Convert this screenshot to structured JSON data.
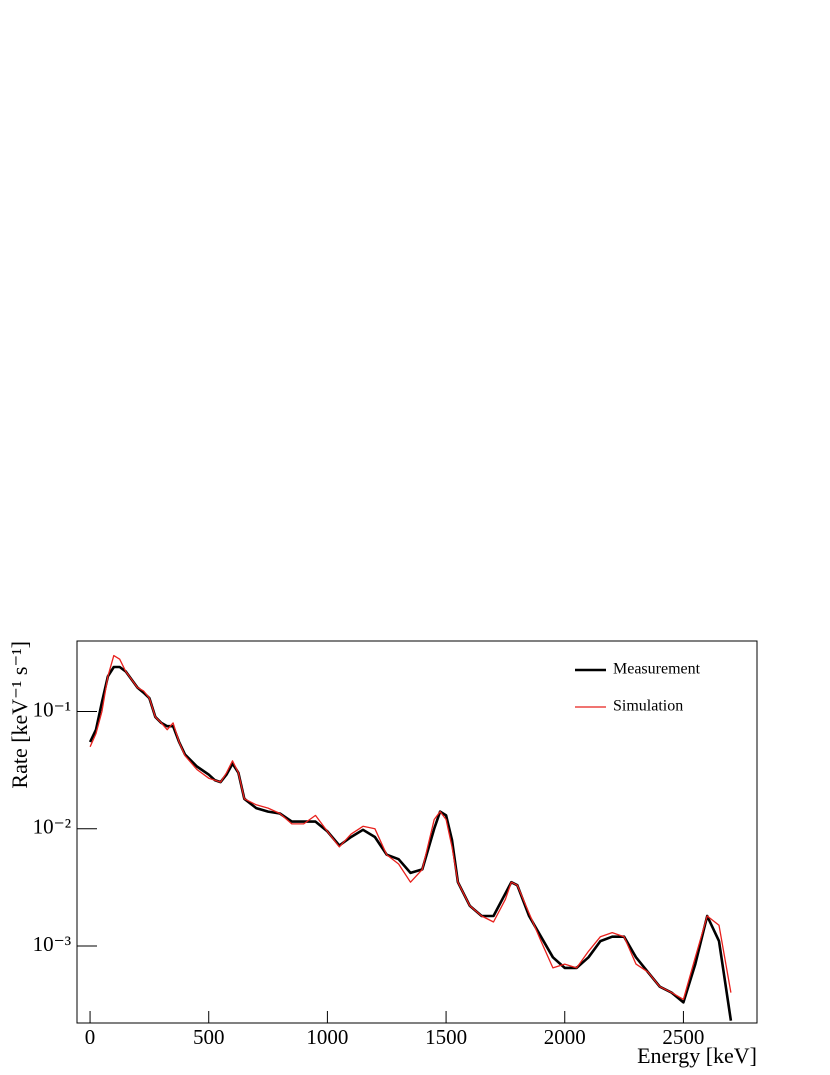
{
  "chart_data": {
    "type": "line",
    "x_label": "Energy [keV]",
    "y_label": "Rate [keV⁻¹ s⁻¹]",
    "log_y": true,
    "legend": "top-right",
    "xlim": [
      -55,
      2810
    ],
    "ylim": [
      0.00022,
      0.4
    ],
    "xticks": [
      0,
      500,
      1000,
      1500,
      2000,
      2500
    ],
    "yticks": [
      {
        "value": 0.001,
        "label": "10⁻³"
      },
      {
        "value": 0.01,
        "label": "10⁻²"
      },
      {
        "value": 0.1,
        "label": "10⁻¹"
      }
    ],
    "x": [
      0,
      25,
      50,
      75,
      100,
      125,
      150,
      200,
      225,
      250,
      275,
      300,
      325,
      350,
      375,
      400,
      450,
      500,
      525,
      550,
      575,
      600,
      625,
      650,
      700,
      750,
      800,
      850,
      900,
      950,
      1000,
      1050,
      1100,
      1150,
      1200,
      1250,
      1300,
      1350,
      1400,
      1450,
      1475,
      1500,
      1525,
      1550,
      1600,
      1650,
      1700,
      1750,
      1775,
      1800,
      1850,
      1900,
      1950,
      2000,
      2050,
      2100,
      2150,
      2200,
      2250,
      2300,
      2350,
      2400,
      2450,
      2500,
      2550,
      2600,
      2650,
      2700
    ],
    "series": [
      {
        "name": "Measurement",
        "color": "#000000",
        "values": [
          0.055,
          0.07,
          0.12,
          0.2,
          0.24,
          0.24,
          0.22,
          0.16,
          0.145,
          0.13,
          0.09,
          0.08,
          0.075,
          0.075,
          0.055,
          0.043,
          0.034,
          0.029,
          0.026,
          0.025,
          0.029,
          0.036,
          0.03,
          0.018,
          0.015,
          0.014,
          0.0135,
          0.0115,
          0.0115,
          0.0115,
          0.0095,
          0.0072,
          0.0085,
          0.0098,
          0.0085,
          0.006,
          0.0055,
          0.0042,
          0.0045,
          0.01,
          0.014,
          0.013,
          0.008,
          0.0035,
          0.0022,
          0.0018,
          0.0018,
          0.0028,
          0.0035,
          0.0033,
          0.0018,
          0.0012,
          0.0008,
          0.00065,
          0.00065,
          0.0008,
          0.0011,
          0.0012,
          0.0012,
          0.0008,
          0.0006,
          0.00045,
          0.0004,
          0.00033,
          0.0007,
          0.0018,
          0.0011,
          0.00023
        ]
      },
      {
        "name": "Simulation",
        "color": "#e8201c",
        "values": [
          0.05,
          0.065,
          0.1,
          0.2,
          0.3,
          0.28,
          0.22,
          0.16,
          0.15,
          0.13,
          0.09,
          0.08,
          0.07,
          0.08,
          0.055,
          0.042,
          0.032,
          0.027,
          0.026,
          0.025,
          0.03,
          0.038,
          0.03,
          0.018,
          0.016,
          0.015,
          0.0135,
          0.011,
          0.011,
          0.013,
          0.0095,
          0.007,
          0.009,
          0.0105,
          0.01,
          0.006,
          0.005,
          0.0035,
          0.0045,
          0.012,
          0.014,
          0.012,
          0.007,
          0.0035,
          0.0022,
          0.0018,
          0.0016,
          0.0025,
          0.0035,
          0.0033,
          0.0019,
          0.0011,
          0.00065,
          0.0007,
          0.00065,
          0.0009,
          0.0012,
          0.0013,
          0.0012,
          0.0007,
          0.0006,
          0.00045,
          0.0004,
          0.00035,
          0.0008,
          0.0018,
          0.0015,
          0.0004
        ]
      }
    ]
  }
}
